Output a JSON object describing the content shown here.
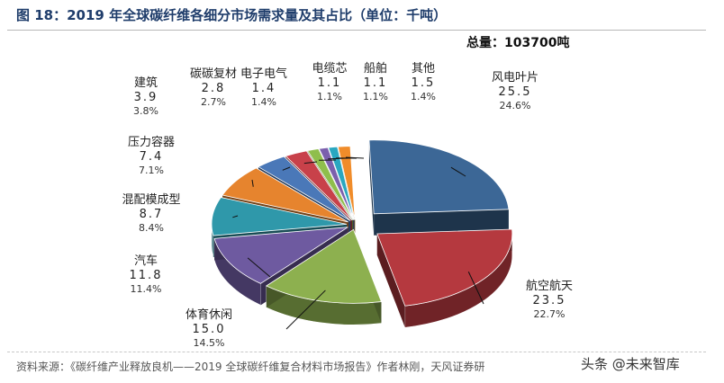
{
  "figure_title": "图 18：2019 年全球碳纤维各细分市场需求量及其占比（单位：千吨）",
  "source_note": "资料来源：《碳纤维产业释放良机——2019 全球碳纤维复合材料市场报告》作者林刚，天风证券研",
  "watermark": "头条 @未来智库",
  "chart_data": {
    "type": "pie",
    "style": "3d-exploded",
    "title": "图 18：2019 年全球碳纤维各细分市场需求量及其占比（单位：千吨）",
    "unit": "千吨",
    "total_label": "总量：103700吨",
    "slices": [
      {
        "name": "风电叶片",
        "value": 25.5,
        "value_label": "25.5",
        "percent": 24.6,
        "percent_label": "24.6%",
        "color": "#3c6796"
      },
      {
        "name": "航空航天",
        "value": 23.5,
        "value_label": "23.5",
        "percent": 22.7,
        "percent_label": "22.7%",
        "color": "#b5393f"
      },
      {
        "name": "体育休闲",
        "value": 15.0,
        "value_label": "15.0",
        "percent": 14.5,
        "percent_label": "14.5%",
        "color": "#8db04f"
      },
      {
        "name": "汽车",
        "value": 11.8,
        "value_label": "11.8",
        "percent": 11.4,
        "percent_label": "11.4%",
        "color": "#6e5aa0"
      },
      {
        "name": "混配模成型",
        "value": 8.7,
        "value_label": "8.7",
        "percent": 8.4,
        "percent_label": "8.4%",
        "color": "#2f98aa"
      },
      {
        "name": "压力容器",
        "value": 7.4,
        "value_label": "7.4",
        "percent": 7.1,
        "percent_label": "7.1%",
        "color": "#e6842e"
      },
      {
        "name": "建筑",
        "value": 3.9,
        "value_label": "3.9",
        "percent": 3.8,
        "percent_label": "3.8%",
        "color": "#4a78b8"
      },
      {
        "name": "碳碳复材",
        "value": 2.8,
        "value_label": "2.8",
        "percent": 2.7,
        "percent_label": "2.7%",
        "color": "#c8414a"
      },
      {
        "name": "电子电气",
        "value": 1.4,
        "value_label": "1.4",
        "percent": 1.4,
        "percent_label": "1.4%",
        "color": "#8fbe4c"
      },
      {
        "name": "电缆芯",
        "value": 1.1,
        "value_label": "1.1",
        "percent": 1.1,
        "percent_label": "1.1%",
        "color": "#7b60ad"
      },
      {
        "name": "船舶",
        "value": 1.1,
        "value_label": "1.1",
        "percent": 1.1,
        "percent_label": "1.1%",
        "color": "#2aa7c0"
      },
      {
        "name": "其他",
        "value": 1.5,
        "value_label": "1.5",
        "percent": 1.4,
        "percent_label": "1.4%",
        "color": "#f08c2a"
      }
    ]
  }
}
